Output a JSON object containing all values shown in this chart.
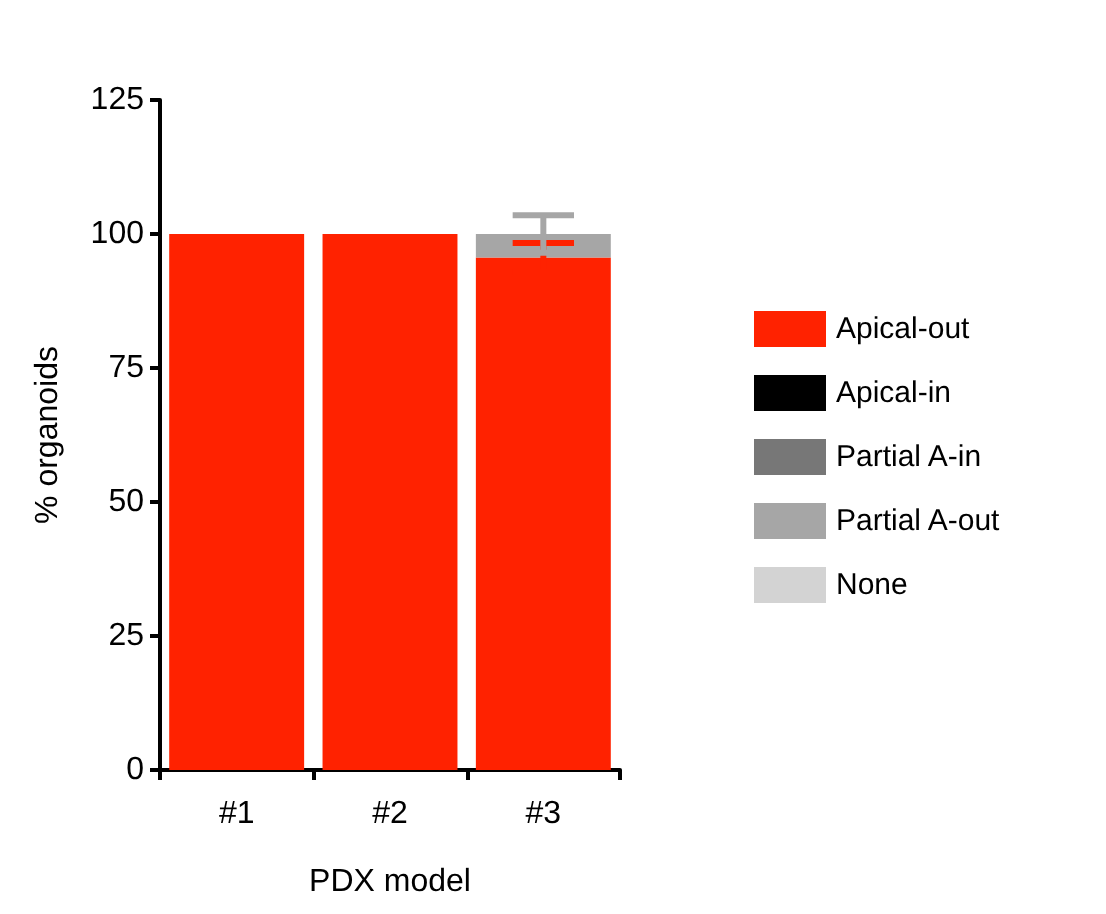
{
  "chart_data": {
    "type": "bar",
    "stacked": true,
    "xlabel": "PDX model",
    "ylabel": "% organoids",
    "categories": [
      "#1",
      "#2",
      "#3"
    ],
    "ylim": [
      0,
      125
    ],
    "yticks": [
      0,
      25,
      50,
      75,
      100,
      125
    ],
    "grid": false,
    "legend": "right",
    "series": [
      {
        "name": "Apical-out",
        "color": "#ff2200",
        "values": [
          100,
          100,
          95.6
        ],
        "errors": [
          null,
          null,
          2.7
        ]
      },
      {
        "name": "Apical-in",
        "color": "#000000",
        "values": [
          0,
          0,
          0
        ]
      },
      {
        "name": "Partial A-in",
        "color": "#777777",
        "values": [
          0,
          0,
          0
        ]
      },
      {
        "name": "Partial A-out",
        "color": "#a6a6a6",
        "values": [
          0,
          0,
          4.4
        ],
        "errors": [
          null,
          null,
          3.5
        ]
      },
      {
        "name": "None",
        "color": "#d3d3d3",
        "values": [
          0,
          0,
          0
        ]
      }
    ]
  }
}
